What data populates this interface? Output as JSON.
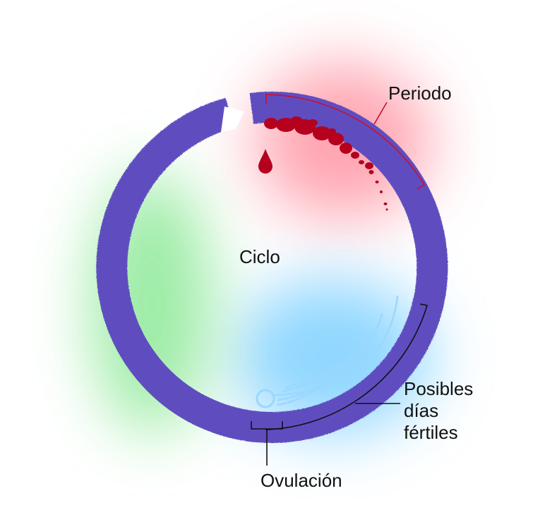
{
  "labels": {
    "period": "Periodo",
    "cycle": "Ciclo",
    "fertile_days": [
      "Posibles",
      "días",
      "fértiles"
    ],
    "ovulation": "Ovulación"
  },
  "colors": {
    "ring": "#5e4ec0",
    "period": "#b5001e",
    "period_glow": "#ff5c72",
    "fertile_glow": "#34b6ff",
    "fertile_lines": "#9ad7ff",
    "green_glow": "#4cdc5c",
    "bracket_period": "#c8102e",
    "bracket_other": "#111111",
    "text": "#111111"
  },
  "icons": {
    "period": "blood-drop-icon",
    "ovulation": "ovulation-ring-icon"
  }
}
